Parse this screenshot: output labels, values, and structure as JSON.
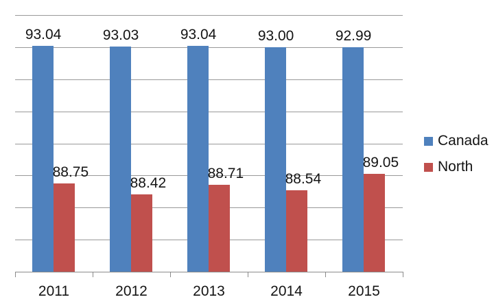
{
  "chart_data": {
    "type": "bar",
    "categories": [
      "2011",
      "2012",
      "2013",
      "2014",
      "2015"
    ],
    "series": [
      {
        "name": "Canada",
        "color": "#4f81bd",
        "values": [
          93.04,
          93.03,
          93.04,
          93.0,
          92.99
        ]
      },
      {
        "name": "North",
        "color": "#c0504d",
        "values": [
          88.75,
          88.42,
          88.71,
          88.54,
          89.05
        ]
      }
    ],
    "title": "",
    "xlabel": "",
    "ylabel": "",
    "ylim": [
      86,
      94
    ],
    "grid_step": 1,
    "grid": "horizontal-only",
    "y_axis_labels_visible": false,
    "data_labels": "outside-end, 2 decimals",
    "legend_position": "right"
  },
  "colors": {
    "canada_bar": "#4f81bd",
    "north_bar": "#c0504d",
    "gridline": "#989898",
    "axis_line": "#8a8a8a",
    "label_text": "#141414",
    "background": "#ffffff"
  }
}
